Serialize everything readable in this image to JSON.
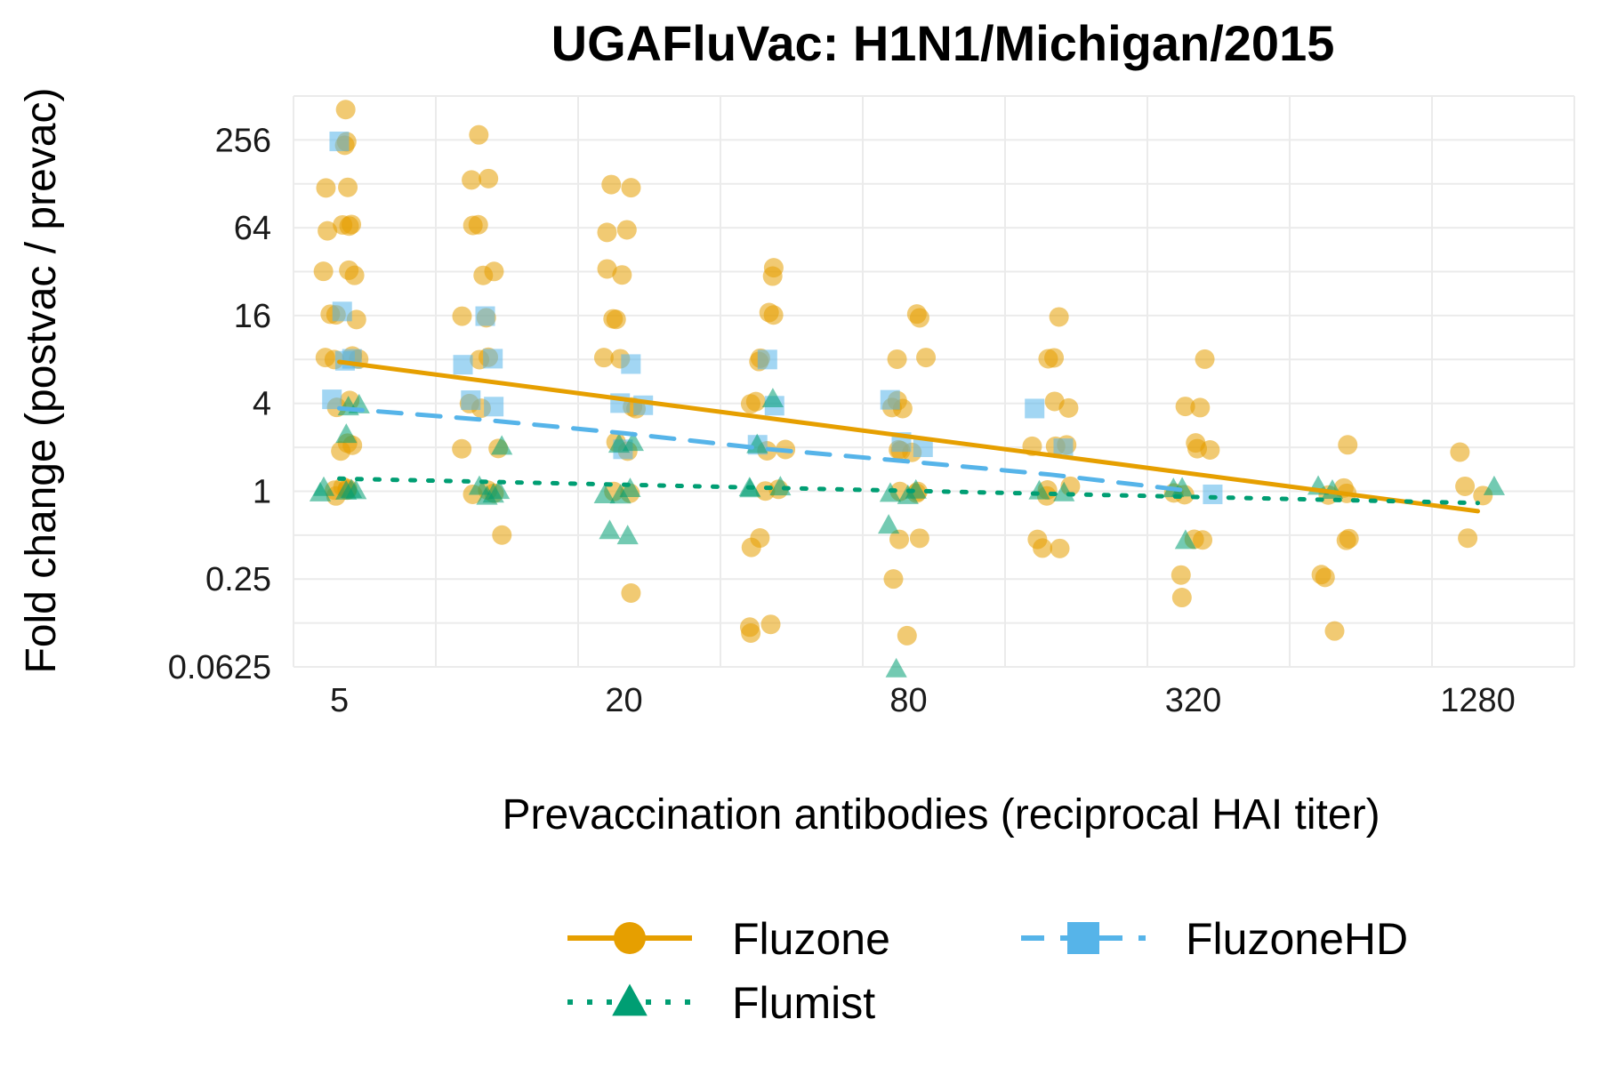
{
  "chart_data": {
    "type": "scatter",
    "title": "UGAFluVac: H1N1/Michigan/2015",
    "xlabel": "Prevaccination antibodies (reciprocal HAI titer)",
    "ylabel": "Fold change (postvac / prevac)",
    "x_scale": "log2",
    "y_scale": "log2",
    "xlim": [
      4,
      2048
    ],
    "ylim": [
      0.0625,
      512
    ],
    "x_ticks": [
      "5",
      "20",
      "80",
      "320",
      "1280"
    ],
    "y_ticks": [
      "256",
      "64",
      "16",
      "4",
      "1",
      "0.25",
      "0.0625"
    ],
    "grid": true,
    "legend_position": "bottom",
    "series": [
      {
        "name": "Fluzone",
        "color": "#E69F00",
        "marker": "circle",
        "line_style": "solid",
        "trend_line": {
          "x": [
            5,
            1280
          ],
          "y": [
            7.7,
            0.73
          ]
        },
        "points": [
          {
            "x": 5,
            "y": 400
          },
          {
            "x": 5,
            "y": 256
          },
          {
            "x": 5,
            "y": 256
          },
          {
            "x": 5,
            "y": 128
          },
          {
            "x": 5,
            "y": 128
          },
          {
            "x": 5,
            "y": 64
          },
          {
            "x": 5,
            "y": 64
          },
          {
            "x": 5,
            "y": 64
          },
          {
            "x": 5,
            "y": 64
          },
          {
            "x": 5,
            "y": 32
          },
          {
            "x": 5,
            "y": 32
          },
          {
            "x": 5,
            "y": 32
          },
          {
            "x": 5,
            "y": 16
          },
          {
            "x": 5,
            "y": 16
          },
          {
            "x": 5,
            "y": 16
          },
          {
            "x": 5,
            "y": 8
          },
          {
            "x": 5,
            "y": 8
          },
          {
            "x": 5,
            "y": 8
          },
          {
            "x": 5,
            "y": 8
          },
          {
            "x": 5,
            "y": 4
          },
          {
            "x": 5,
            "y": 4
          },
          {
            "x": 5,
            "y": 2
          },
          {
            "x": 5,
            "y": 2
          },
          {
            "x": 5,
            "y": 2
          },
          {
            "x": 5,
            "y": 1
          },
          {
            "x": 5,
            "y": 1
          },
          {
            "x": 5,
            "y": 1
          },
          {
            "x": 5,
            "y": 1
          },
          {
            "x": 5,
            "y": 1
          },
          {
            "x": 10,
            "y": 256
          },
          {
            "x": 10,
            "y": 128
          },
          {
            "x": 10,
            "y": 128
          },
          {
            "x": 10,
            "y": 64
          },
          {
            "x": 10,
            "y": 64
          },
          {
            "x": 10,
            "y": 32
          },
          {
            "x": 10,
            "y": 32
          },
          {
            "x": 10,
            "y": 16
          },
          {
            "x": 10,
            "y": 16
          },
          {
            "x": 10,
            "y": 8
          },
          {
            "x": 10,
            "y": 8
          },
          {
            "x": 10,
            "y": 4
          },
          {
            "x": 10,
            "y": 4
          },
          {
            "x": 10,
            "y": 2
          },
          {
            "x": 10,
            "y": 2
          },
          {
            "x": 10,
            "y": 1
          },
          {
            "x": 10,
            "y": 1
          },
          {
            "x": 10,
            "y": 1
          },
          {
            "x": 10,
            "y": 0.5
          },
          {
            "x": 20,
            "y": 128
          },
          {
            "x": 20,
            "y": 128
          },
          {
            "x": 20,
            "y": 64
          },
          {
            "x": 20,
            "y": 64
          },
          {
            "x": 20,
            "y": 32
          },
          {
            "x": 20,
            "y": 32
          },
          {
            "x": 20,
            "y": 16
          },
          {
            "x": 20,
            "y": 16
          },
          {
            "x": 20,
            "y": 8
          },
          {
            "x": 20,
            "y": 8
          },
          {
            "x": 20,
            "y": 4
          },
          {
            "x": 20,
            "y": 4
          },
          {
            "x": 20,
            "y": 2
          },
          {
            "x": 20,
            "y": 2
          },
          {
            "x": 20,
            "y": 1
          },
          {
            "x": 20,
            "y": 1
          },
          {
            "x": 20,
            "y": 0.2
          },
          {
            "x": 40,
            "y": 32
          },
          {
            "x": 40,
            "y": 32
          },
          {
            "x": 40,
            "y": 16
          },
          {
            "x": 40,
            "y": 16
          },
          {
            "x": 40,
            "y": 8
          },
          {
            "x": 40,
            "y": 8
          },
          {
            "x": 40,
            "y": 4
          },
          {
            "x": 40,
            "y": 4
          },
          {
            "x": 40,
            "y": 2
          },
          {
            "x": 40,
            "y": 2
          },
          {
            "x": 40,
            "y": 1
          },
          {
            "x": 40,
            "y": 1
          },
          {
            "x": 40,
            "y": 0.44
          },
          {
            "x": 40,
            "y": 0.44
          },
          {
            "x": 40,
            "y": 0.12
          },
          {
            "x": 40,
            "y": 0.11
          },
          {
            "x": 40,
            "y": 0.1
          },
          {
            "x": 80,
            "y": 16
          },
          {
            "x": 80,
            "y": 16
          },
          {
            "x": 80,
            "y": 8
          },
          {
            "x": 80,
            "y": 8
          },
          {
            "x": 80,
            "y": 4
          },
          {
            "x": 80,
            "y": 4
          },
          {
            "x": 80,
            "y": 4
          },
          {
            "x": 80,
            "y": 2
          },
          {
            "x": 80,
            "y": 2
          },
          {
            "x": 80,
            "y": 2
          },
          {
            "x": 80,
            "y": 1
          },
          {
            "x": 80,
            "y": 1
          },
          {
            "x": 80,
            "y": 1
          },
          {
            "x": 80,
            "y": 0.44
          },
          {
            "x": 80,
            "y": 0.44
          },
          {
            "x": 80,
            "y": 0.25
          },
          {
            "x": 80,
            "y": 0.1
          },
          {
            "x": 160,
            "y": 16
          },
          {
            "x": 160,
            "y": 8
          },
          {
            "x": 160,
            "y": 8
          },
          {
            "x": 160,
            "y": 4
          },
          {
            "x": 160,
            "y": 4
          },
          {
            "x": 160,
            "y": 2
          },
          {
            "x": 160,
            "y": 2
          },
          {
            "x": 160,
            "y": 2
          },
          {
            "x": 160,
            "y": 1
          },
          {
            "x": 160,
            "y": 1
          },
          {
            "x": 160,
            "y": 1
          },
          {
            "x": 160,
            "y": 0.5
          },
          {
            "x": 160,
            "y": 0.44
          },
          {
            "x": 160,
            "y": 0.44
          },
          {
            "x": 320,
            "y": 8
          },
          {
            "x": 320,
            "y": 4
          },
          {
            "x": 320,
            "y": 4
          },
          {
            "x": 320,
            "y": 2
          },
          {
            "x": 320,
            "y": 2
          },
          {
            "x": 320,
            "y": 2
          },
          {
            "x": 320,
            "y": 1
          },
          {
            "x": 320,
            "y": 1
          },
          {
            "x": 320,
            "y": 0.5
          },
          {
            "x": 320,
            "y": 0.5
          },
          {
            "x": 320,
            "y": 0.25
          },
          {
            "x": 320,
            "y": 0.2
          },
          {
            "x": 640,
            "y": 2
          },
          {
            "x": 640,
            "y": 1
          },
          {
            "x": 640,
            "y": 1
          },
          {
            "x": 640,
            "y": 1
          },
          {
            "x": 640,
            "y": 0.5
          },
          {
            "x": 640,
            "y": 0.44
          },
          {
            "x": 640,
            "y": 0.25
          },
          {
            "x": 640,
            "y": 0.25
          },
          {
            "x": 640,
            "y": 0.11
          },
          {
            "x": 1280,
            "y": 1.8
          },
          {
            "x": 1280,
            "y": 1
          },
          {
            "x": 1280,
            "y": 1
          },
          {
            "x": 1280,
            "y": 0.5
          }
        ]
      },
      {
        "name": "FluzoneHD",
        "color": "#56B4E9",
        "marker": "square",
        "line_style": "dashed",
        "trend_line": {
          "x": [
            5,
            10,
            20,
            40,
            80,
            160,
            320
          ],
          "y": [
            3.7,
            3.1,
            2.5,
            1.95,
            1.6,
            1.3,
            1.0
          ]
        },
        "points": [
          {
            "x": 5,
            "y": 256
          },
          {
            "x": 5,
            "y": 16
          },
          {
            "x": 5,
            "y": 8
          },
          {
            "x": 5,
            "y": 8
          },
          {
            "x": 5,
            "y": 4
          },
          {
            "x": 10,
            "y": 16
          },
          {
            "x": 10,
            "y": 8
          },
          {
            "x": 10,
            "y": 8
          },
          {
            "x": 10,
            "y": 4
          },
          {
            "x": 10,
            "y": 4
          },
          {
            "x": 20,
            "y": 8
          },
          {
            "x": 20,
            "y": 4
          },
          {
            "x": 20,
            "y": 4
          },
          {
            "x": 20,
            "y": 2
          },
          {
            "x": 40,
            "y": 8
          },
          {
            "x": 40,
            "y": 4
          },
          {
            "x": 40,
            "y": 2
          },
          {
            "x": 80,
            "y": 4
          },
          {
            "x": 80,
            "y": 2
          },
          {
            "x": 80,
            "y": 2
          },
          {
            "x": 160,
            "y": 4
          },
          {
            "x": 160,
            "y": 2
          },
          {
            "x": 320,
            "y": 1
          }
        ]
      },
      {
        "name": "Flumist",
        "color": "#009E73",
        "marker": "triangle",
        "line_style": "dotted",
        "trend_line": {
          "x": [
            5,
            1280
          ],
          "y": [
            1.22,
            0.83
          ]
        },
        "points": [
          {
            "x": 5,
            "y": 4
          },
          {
            "x": 5,
            "y": 4
          },
          {
            "x": 5,
            "y": 2.3
          },
          {
            "x": 5,
            "y": 1
          },
          {
            "x": 5,
            "y": 1
          },
          {
            "x": 5,
            "y": 1
          },
          {
            "x": 5,
            "y": 1
          },
          {
            "x": 5,
            "y": 1
          },
          {
            "x": 10,
            "y": 2
          },
          {
            "x": 10,
            "y": 1
          },
          {
            "x": 10,
            "y": 1
          },
          {
            "x": 10,
            "y": 1
          },
          {
            "x": 10,
            "y": 1
          },
          {
            "x": 20,
            "y": 2
          },
          {
            "x": 20,
            "y": 2
          },
          {
            "x": 20,
            "y": 1
          },
          {
            "x": 20,
            "y": 1
          },
          {
            "x": 20,
            "y": 1
          },
          {
            "x": 20,
            "y": 0.5
          },
          {
            "x": 20,
            "y": 0.5
          },
          {
            "x": 40,
            "y": 4
          },
          {
            "x": 40,
            "y": 2
          },
          {
            "x": 40,
            "y": 1
          },
          {
            "x": 40,
            "y": 1
          },
          {
            "x": 40,
            "y": 1
          },
          {
            "x": 80,
            "y": 1
          },
          {
            "x": 80,
            "y": 1
          },
          {
            "x": 80,
            "y": 1
          },
          {
            "x": 80,
            "y": 0.55
          },
          {
            "x": 80,
            "y": 0.0625
          },
          {
            "x": 160,
            "y": 1
          },
          {
            "x": 160,
            "y": 1
          },
          {
            "x": 320,
            "y": 1.1
          },
          {
            "x": 320,
            "y": 1
          },
          {
            "x": 320,
            "y": 0.45
          },
          {
            "x": 640,
            "y": 1
          },
          {
            "x": 640,
            "y": 1
          },
          {
            "x": 1280,
            "y": 1
          }
        ]
      }
    ]
  }
}
